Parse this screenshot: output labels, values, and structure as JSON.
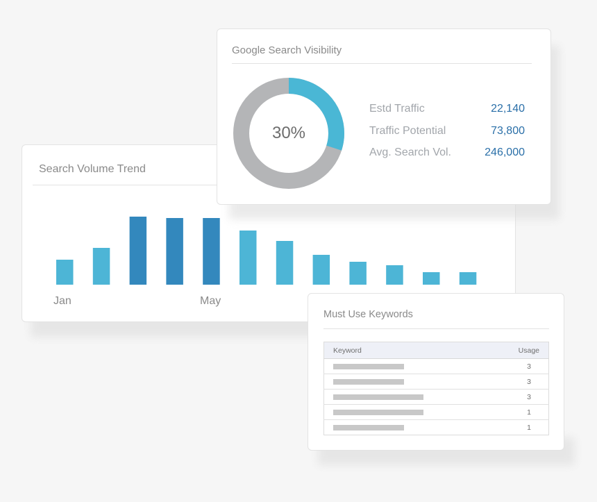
{
  "trend": {
    "title": "Search Volume Trend",
    "axis_labels": [
      "Jan",
      "May"
    ],
    "colors": {
      "light": "#4db5d6",
      "dark": "#3388bd"
    }
  },
  "chart_data": {
    "type": "bar",
    "categories": [
      "Jan",
      "",
      "",
      "",
      "May",
      "",
      "",
      "",
      "",
      "",
      "",
      ""
    ],
    "values": [
      36,
      53,
      98,
      96,
      96,
      78,
      63,
      43,
      33,
      28,
      18,
      18
    ],
    "emphasis": [
      false,
      false,
      true,
      true,
      true,
      false,
      false,
      false,
      false,
      false,
      false,
      false
    ],
    "title": "Search Volume Trend",
    "xlabel": "",
    "ylabel": "",
    "grid": false
  },
  "visibility": {
    "title": "Google Search Visibility",
    "percent": 30,
    "percent_label": "30%",
    "colors": {
      "fill": "#4ab7d5",
      "track": "#b4b5b7"
    },
    "stats": [
      {
        "label": "Estd Traffic",
        "value": "22,140"
      },
      {
        "label": "Traffic Potential",
        "value": "73,800"
      },
      {
        "label": "Avg. Search Vol.",
        "value": "246,000"
      }
    ]
  },
  "keywords": {
    "title": "Must Use Keywords",
    "columns": [
      "Keyword",
      "Usage"
    ],
    "rows": [
      {
        "usage": "3",
        "bar": 0.58
      },
      {
        "usage": "3",
        "bar": 0.58
      },
      {
        "usage": "3",
        "bar": 0.74
      },
      {
        "usage": "1",
        "bar": 0.74
      },
      {
        "usage": "1",
        "bar": 0.58
      }
    ]
  }
}
